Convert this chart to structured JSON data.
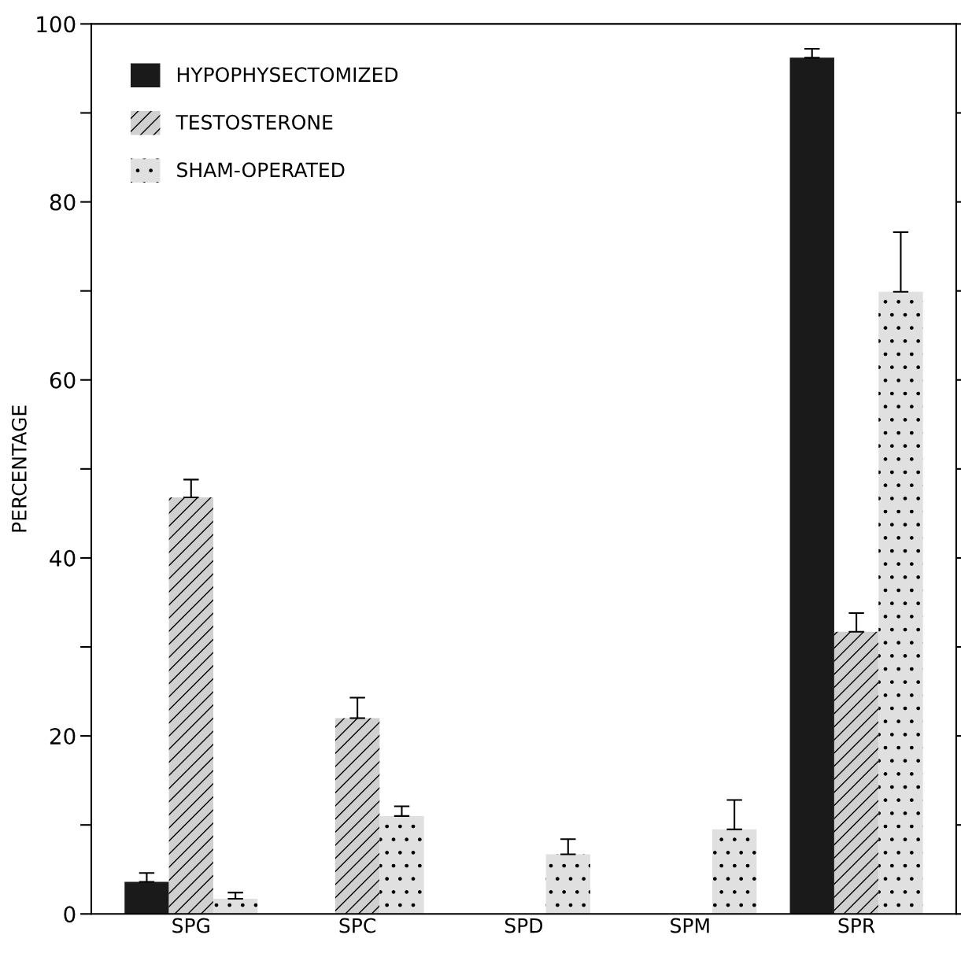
{
  "chart_data": {
    "type": "bar",
    "ylabel": "PERCENTAGE",
    "categories": [
      "SPG",
      "SPC",
      "SPD",
      "SPM",
      "SPR"
    ],
    "series": [
      {
        "name": "HYPOPHYSECTOMIZED",
        "color": "#1a1a1a",
        "values": [
          3.6,
          null,
          null,
          null,
          96.2
        ],
        "errors": [
          [
            3.6,
            4.6
          ],
          null,
          null,
          null,
          [
            96.2,
            97.2
          ]
        ]
      },
      {
        "name": "TESTOSTERONE",
        "color": "#d0d0d0",
        "values": [
          46.8,
          22.0,
          null,
          null,
          31.7
        ],
        "errors": [
          [
            46.8,
            48.8
          ],
          [
            22.0,
            24.3
          ],
          null,
          null,
          [
            31.7,
            33.8
          ]
        ]
      },
      {
        "name": "SHAM-OPERATED",
        "color": "#e0e0e0",
        "values": [
          1.7,
          11.0,
          6.7,
          9.5,
          69.9
        ],
        "errors": [
          [
            1.7,
            2.4
          ],
          [
            11.0,
            12.1
          ],
          [
            6.7,
            8.4
          ],
          [
            9.5,
            12.8
          ],
          [
            69.9,
            76.6
          ]
        ]
      }
    ],
    "ylim": [
      0,
      100
    ],
    "yticks": [
      0,
      {
        "value": 10,
        "label": null
      },
      20,
      {
        "value": 30,
        "label": null
      },
      40,
      {
        "value": 50,
        "label": null
      },
      60,
      {
        "value": 70,
        "label": null
      },
      80,
      {
        "value": 90,
        "label": null
      },
      100
    ],
    "legend": "top left",
    "grid": false
  }
}
